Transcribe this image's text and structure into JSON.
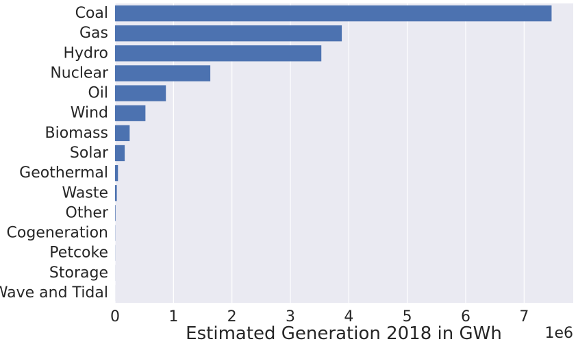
{
  "colors": {
    "plot_background": "#eaeaf2",
    "grid": "#ffffff",
    "bar": "#4c72b0",
    "text": "#262626"
  },
  "chart_data": {
    "type": "bar",
    "orientation": "horizontal",
    "categories": [
      "Coal",
      "Gas",
      "Hydro",
      "Nuclear",
      "Oil",
      "Wind",
      "Biomass",
      "Solar",
      "Geothermal",
      "Waste",
      "Other",
      "Cogeneration",
      "Petcoke",
      "Storage",
      "Wave and Tidal"
    ],
    "values": [
      7470000,
      3880000,
      3530000,
      1630000,
      870000,
      520000,
      250000,
      165000,
      50000,
      30000,
      8000,
      3000,
      2000,
      1000,
      500
    ],
    "xlabel": "Estimated Generation 2018 in GWh",
    "ylabel": "",
    "xlim": [
      0,
      7840000
    ],
    "xticks": [
      0,
      1000000,
      2000000,
      3000000,
      4000000,
      5000000,
      6000000,
      7000000
    ],
    "xtick_labels": [
      "0",
      "1",
      "2",
      "3",
      "4",
      "5",
      "6",
      "7"
    ],
    "x_offset_label": "1e6",
    "grid": true,
    "legend": "none"
  }
}
